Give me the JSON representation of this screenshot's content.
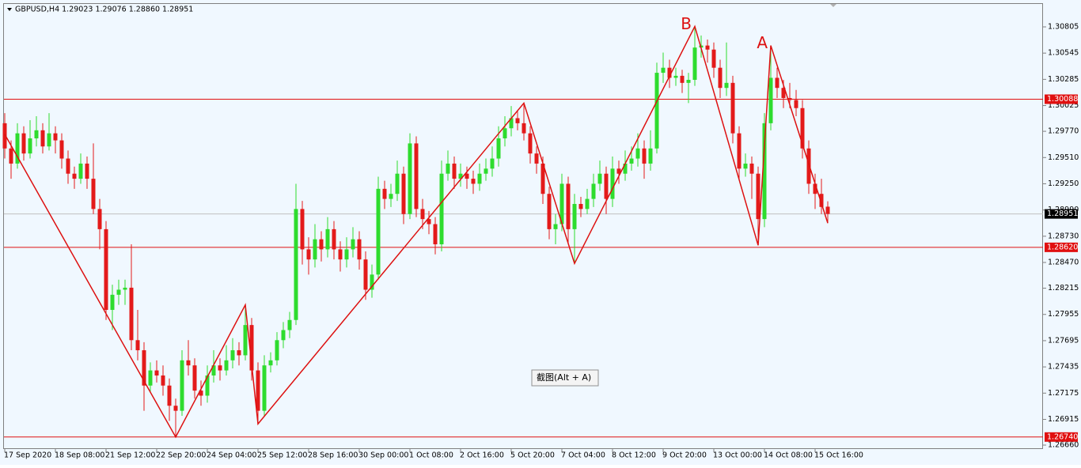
{
  "chart_data": {
    "type": "candlestick",
    "title": "GBPUSD,H4  1.29023 1.29076 1.28860 1.28951",
    "tooltip": "截图(Alt + A)",
    "up_color": "#2edc2e",
    "down_color": "#e31a1a",
    "zigzag_color": "#dd1111",
    "categories": [
      "17 Sep 2020",
      null,
      null,
      null,
      null,
      null,
      null,
      null,
      "18 Sep 08:00",
      null,
      null,
      null,
      null,
      null,
      null,
      null,
      "21 Sep 12:00",
      null,
      null,
      null,
      null,
      null,
      null,
      null,
      "22 Sep 20:00",
      null,
      null,
      null,
      null,
      null,
      null,
      null,
      "24 Sep 04:00",
      null,
      null,
      null,
      null,
      null,
      null,
      null,
      "25 Sep 12:00",
      null,
      null,
      null,
      null,
      null,
      null,
      null,
      "28 Sep 16:00",
      null,
      null,
      null,
      null,
      null,
      null,
      null,
      "30 Sep 00:00",
      null,
      null,
      null,
      null,
      null,
      null,
      null,
      "1 Oct 08:00",
      null,
      null,
      null,
      null,
      null,
      null,
      null,
      "2 Oct 16:00",
      null,
      null,
      null,
      null,
      null,
      null,
      null,
      "5 Oct 20:00",
      null,
      null,
      null,
      null,
      null,
      null,
      null,
      "7 Oct 04:00",
      null,
      null,
      null,
      null,
      null,
      null,
      null,
      "8 Oct 12:00",
      null,
      null,
      null,
      null,
      null,
      null,
      null,
      "9 Oct 20:00",
      null,
      null,
      null,
      null,
      null,
      null,
      null,
      "13 Oct 00:00",
      null,
      null,
      null,
      null,
      null,
      null,
      null,
      "14 Oct 08:00",
      null,
      null,
      null,
      null,
      null,
      null,
      null,
      "15 Oct 16:00",
      null,
      null
    ],
    "ohlc": [
      [
        1.2985,
        1.2995,
        1.295,
        1.296
      ],
      [
        1.296,
        1.2968,
        1.293,
        1.2945
      ],
      [
        1.2945,
        1.2985,
        1.294,
        1.2975
      ],
      [
        1.2975,
        1.2982,
        1.2948,
        1.2955
      ],
      [
        1.2955,
        1.2988,
        1.295,
        1.297
      ],
      [
        1.297,
        1.2992,
        1.2962,
        1.2978
      ],
      [
        1.2978,
        1.2985,
        1.2955,
        1.2962
      ],
      [
        1.2962,
        1.2995,
        1.2958,
        1.2975
      ],
      [
        1.2975,
        1.2982,
        1.2955,
        1.2968
      ],
      [
        1.2968,
        1.2975,
        1.294,
        1.295
      ],
      [
        1.295,
        1.2958,
        1.2925,
        1.2935
      ],
      [
        1.2935,
        1.2942,
        1.292,
        1.293
      ],
      [
        1.293,
        1.2955,
        1.2925,
        1.2945
      ],
      [
        1.2945,
        1.2952,
        1.292,
        1.293
      ],
      [
        1.293,
        1.2965,
        1.2895,
        1.29
      ],
      [
        1.29,
        1.291,
        1.286,
        1.288
      ],
      [
        1.288,
        1.2888,
        1.279,
        1.28
      ],
      [
        1.28,
        1.2825,
        1.278,
        1.2815
      ],
      [
        1.2815,
        1.283,
        1.2805,
        1.282
      ],
      [
        1.282,
        1.283,
        1.2805,
        1.2822
      ],
      [
        1.2822,
        1.2865,
        1.276,
        1.277
      ],
      [
        1.277,
        1.28,
        1.275,
        1.276
      ],
      [
        1.276,
        1.2768,
        1.27,
        1.2725
      ],
      [
        1.2725,
        1.2748,
        1.2718,
        1.274
      ],
      [
        1.274,
        1.275,
        1.2728,
        1.2735
      ],
      [
        1.2735,
        1.2745,
        1.2715,
        1.2725
      ],
      [
        1.2725,
        1.2732,
        1.269,
        1.2705
      ],
      [
        1.2705,
        1.2712,
        1.2674,
        1.27
      ],
      [
        1.27,
        1.276,
        1.2695,
        1.275
      ],
      [
        1.275,
        1.277,
        1.2735,
        1.2745
      ],
      [
        1.2745,
        1.2752,
        1.2712,
        1.272
      ],
      [
        1.272,
        1.273,
        1.2705,
        1.2715
      ],
      [
        1.2715,
        1.2745,
        1.2708,
        1.2735
      ],
      [
        1.2735,
        1.276,
        1.2728,
        1.2745
      ],
      [
        1.2745,
        1.2752,
        1.273,
        1.274
      ],
      [
        1.274,
        1.2765,
        1.2735,
        1.275
      ],
      [
        1.275,
        1.2772,
        1.2742,
        1.276
      ],
      [
        1.276,
        1.2768,
        1.2745,
        1.2755
      ],
      [
        1.2755,
        1.2805,
        1.275,
        1.2785
      ],
      [
        1.2785,
        1.2792,
        1.273,
        1.274
      ],
      [
        1.274,
        1.2748,
        1.2687,
        1.27
      ],
      [
        1.27,
        1.2755,
        1.2695,
        1.2745
      ],
      [
        1.2745,
        1.2758,
        1.2738,
        1.275
      ],
      [
        1.275,
        1.2778,
        1.2745,
        1.277
      ],
      [
        1.277,
        1.2788,
        1.2762,
        1.278
      ],
      [
        1.278,
        1.2798,
        1.2772,
        1.279
      ],
      [
        1.279,
        1.2925,
        1.2785,
        1.29
      ],
      [
        1.29,
        1.2908,
        1.2845,
        1.286
      ],
      [
        1.286,
        1.2872,
        1.2835,
        1.285
      ],
      [
        1.285,
        1.2885,
        1.2842,
        1.287
      ],
      [
        1.287,
        1.2878,
        1.2848,
        1.286
      ],
      [
        1.286,
        1.2892,
        1.2852,
        1.288
      ],
      [
        1.288,
        1.2888,
        1.285,
        1.286
      ],
      [
        1.286,
        1.2868,
        1.2838,
        1.285
      ],
      [
        1.285,
        1.2872,
        1.2842,
        1.286
      ],
      [
        1.286,
        1.2882,
        1.2852,
        1.287
      ],
      [
        1.287,
        1.2878,
        1.284,
        1.285
      ],
      [
        1.285,
        1.2858,
        1.281,
        1.282
      ],
      [
        1.282,
        1.2845,
        1.2812,
        1.2835
      ],
      [
        1.2835,
        1.2932,
        1.283,
        1.292
      ],
      [
        1.292,
        1.2928,
        1.29,
        1.291
      ],
      [
        1.291,
        1.2925,
        1.2902,
        1.2915
      ],
      [
        1.2915,
        1.2948,
        1.2908,
        1.2935
      ],
      [
        1.2935,
        1.2942,
        1.2885,
        1.2895
      ],
      [
        1.2895,
        1.2975,
        1.289,
        1.2965
      ],
      [
        1.2965,
        1.2972,
        1.2892,
        1.29
      ],
      [
        1.29,
        1.291,
        1.288,
        1.289
      ],
      [
        1.289,
        1.2898,
        1.2875,
        1.2885
      ],
      [
        1.2885,
        1.2892,
        1.2855,
        1.2865
      ],
      [
        1.2865,
        1.2948,
        1.2858,
        1.2935
      ],
      [
        1.2935,
        1.2958,
        1.2928,
        1.2945
      ],
      [
        1.2945,
        1.2952,
        1.292,
        1.293
      ],
      [
        1.293,
        1.2945,
        1.2922,
        1.2935
      ],
      [
        1.2935,
        1.2942,
        1.292,
        1.293
      ],
      [
        1.293,
        1.2938,
        1.2915,
        1.2925
      ],
      [
        1.2925,
        1.2945,
        1.2918,
        1.2935
      ],
      [
        1.2935,
        1.295,
        1.2928,
        1.294
      ],
      [
        1.294,
        1.2962,
        1.2932,
        1.295
      ],
      [
        1.295,
        1.2982,
        1.2942,
        1.297
      ],
      [
        1.297,
        1.2992,
        1.2962,
        1.298
      ],
      [
        1.298,
        1.3002,
        1.2972,
        1.299
      ],
      [
        1.299,
        1.2998,
        1.2978,
        1.2985
      ],
      [
        1.2985,
        1.3005,
        1.2968,
        1.2975
      ],
      [
        1.2975,
        1.2982,
        1.2945,
        1.2955
      ],
      [
        1.2955,
        1.2962,
        1.2935,
        1.2945
      ],
      [
        1.2945,
        1.2952,
        1.2905,
        1.2915
      ],
      [
        1.2915,
        1.2922,
        1.287,
        1.288
      ],
      [
        1.288,
        1.2895,
        1.2865,
        1.2885
      ],
      [
        1.2885,
        1.2935,
        1.2878,
        1.2925
      ],
      [
        1.2925,
        1.2932,
        1.2865,
        1.288
      ],
      [
        1.288,
        1.2915,
        1.2846,
        1.2905
      ],
      [
        1.2905,
        1.2912,
        1.2892,
        1.29
      ],
      [
        1.29,
        1.292,
        1.2895,
        1.291
      ],
      [
        1.291,
        1.2935,
        1.2902,
        1.2925
      ],
      [
        1.2925,
        1.2948,
        1.2918,
        1.2935
      ],
      [
        1.2935,
        1.2942,
        1.2895,
        1.291
      ],
      [
        1.291,
        1.2952,
        1.2902,
        1.294
      ],
      [
        1.294,
        1.2948,
        1.2925,
        1.2935
      ],
      [
        1.2935,
        1.2958,
        1.2928,
        1.2945
      ],
      [
        1.2945,
        1.2962,
        1.2938,
        1.295
      ],
      [
        1.295,
        1.2975,
        1.2942,
        1.296
      ],
      [
        1.296,
        1.2968,
        1.293,
        1.2945
      ],
      [
        1.2945,
        1.2978,
        1.2938,
        1.296
      ],
      [
        1.296,
        1.3045,
        1.2955,
        1.3035
      ],
      [
        1.3035,
        1.3055,
        1.3025,
        1.304
      ],
      [
        1.304,
        1.3048,
        1.302,
        1.303
      ],
      [
        1.303,
        1.304,
        1.3022,
        1.3032
      ],
      [
        1.3032,
        1.3038,
        1.3015,
        1.3025
      ],
      [
        1.3025,
        1.3035,
        1.3005,
        1.3028
      ],
      [
        1.3028,
        1.3081,
        1.3022,
        1.306
      ],
      [
        1.306,
        1.3072,
        1.305,
        1.3062
      ],
      [
        1.3062,
        1.3068,
        1.3045,
        1.3058
      ],
      [
        1.3058,
        1.3065,
        1.303,
        1.304
      ],
      [
        1.304,
        1.3048,
        1.301,
        1.302
      ],
      [
        1.302,
        1.3065,
        1.3012,
        1.3025
      ],
      [
        1.3025,
        1.3032,
        1.2965,
        1.2975
      ],
      [
        1.2975,
        1.2982,
        1.293,
        1.294
      ],
      [
        1.294,
        1.2955,
        1.2932,
        1.2945
      ],
      [
        1.2945,
        1.2952,
        1.291,
        1.2935
      ],
      [
        1.2935,
        1.2942,
        1.2864,
        1.289
      ],
      [
        1.289,
        1.2995,
        1.2882,
        1.2985
      ],
      [
        1.2985,
        1.3062,
        1.2978,
        1.303
      ],
      [
        1.303,
        1.304,
        1.301,
        1.302
      ],
      [
        1.302,
        1.3028,
        1.3,
        1.301
      ],
      [
        1.301,
        1.3025,
        1.3,
        1.3008
      ],
      [
        1.3008,
        1.3018,
        1.2992,
        1.3
      ],
      [
        1.3,
        1.3008,
        1.295,
        1.296
      ],
      [
        1.296,
        1.2968,
        1.2915,
        1.2925
      ],
      [
        1.2925,
        1.2935,
        1.29,
        1.2915
      ],
      [
        1.2915,
        1.293,
        1.2895,
        1.2902
      ],
      [
        1.29023,
        1.29076,
        1.2886,
        1.28951
      ]
    ],
    "zigzag": {
      "x": [
        0,
        27,
        38,
        40,
        82,
        90,
        109,
        119,
        121,
        130
      ],
      "values": [
        1.2974,
        1.2674,
        1.2805,
        1.2687,
        1.3005,
        1.2846,
        1.3081,
        1.2864,
        1.3062,
        1.2886
      ]
    },
    "annotations": [
      {
        "text": "B",
        "x": 109,
        "y": 1.3081
      },
      {
        "text": "A",
        "x": 121,
        "y": 1.3062
      }
    ],
    "levels": [
      {
        "value": 1.30088,
        "label": "1.30088"
      },
      {
        "value": 1.2862,
        "label": "1.28620"
      },
      {
        "value": 1.2674,
        "label": "1.26740"
      }
    ],
    "level_color": "#e01010",
    "current_price": 1.28951,
    "ylim": [
      1.26621,
      1.3104
    ],
    "yticks": [
      1.30805,
      1.30545,
      1.30285,
      1.30025,
      {
        "value": 1.2977,
        "label": "1.29770"
      },
      {
        "value": 1.2951,
        "label": "1.29510"
      },
      {
        "value": 1.2925,
        "label": "1.29250"
      },
      {
        "value": 1.2899,
        "label": "1.28990"
      },
      {
        "value": 1.2873,
        "label": "1.28730"
      },
      {
        "value": 1.2847,
        "label": "1.28470"
      },
      1.28215,
      1.27955,
      1.27695,
      1.27435,
      1.27175,
      1.26915,
      {
        "value": 1.2666,
        "label": "1.26660"
      }
    ],
    "grid": false
  }
}
